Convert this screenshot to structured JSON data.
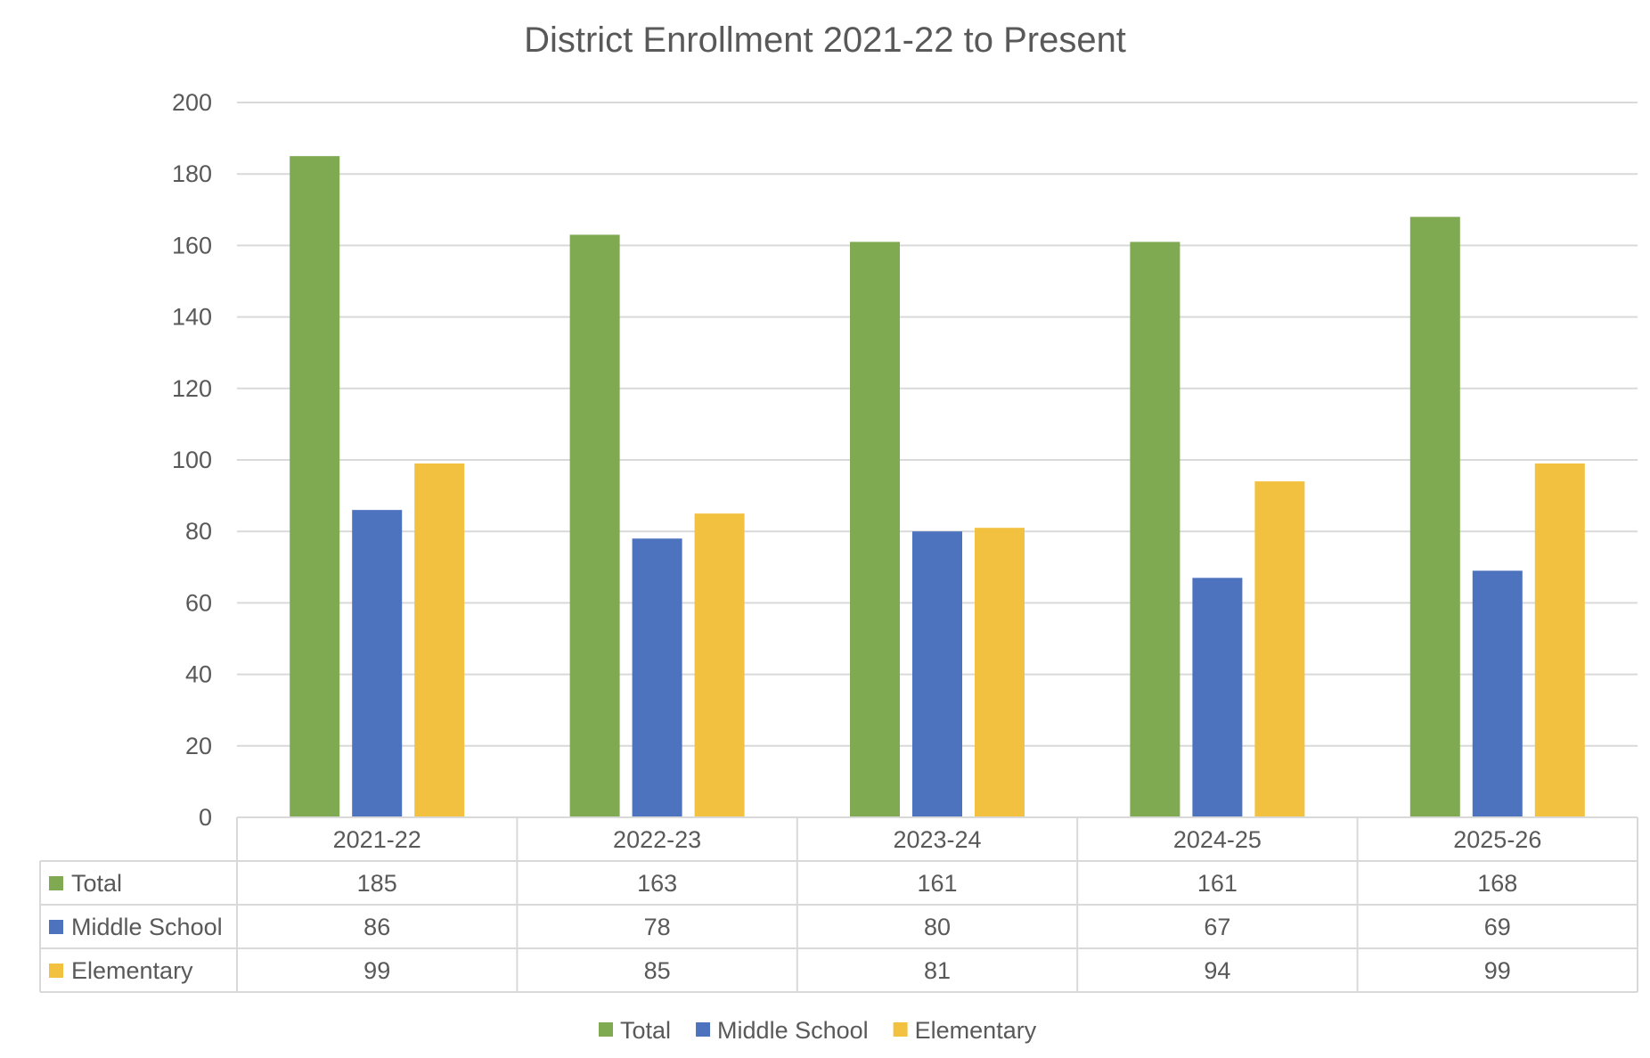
{
  "chart_data": {
    "type": "bar",
    "title": "District Enrollment 2021-22 to Present",
    "categories": [
      "2021-22",
      "2022-23",
      "2023-24",
      "2024-25",
      "2025-26"
    ],
    "series": [
      {
        "name": "Total",
        "color": "#7faa52",
        "values": [
          185,
          163,
          161,
          161,
          168
        ]
      },
      {
        "name": "Middle School",
        "color": "#4d73be",
        "values": [
          86,
          78,
          80,
          67,
          69
        ]
      },
      {
        "name": "Elementary",
        "color": "#f2c13f",
        "values": [
          99,
          85,
          81,
          94,
          99
        ]
      }
    ],
    "ylim": [
      0,
      200
    ],
    "yticks": [
      0,
      20,
      40,
      60,
      80,
      100,
      120,
      140,
      160,
      180,
      200
    ],
    "grid": true,
    "legend": "bottom-center",
    "data_table": true,
    "xlabel": "",
    "ylabel": ""
  }
}
